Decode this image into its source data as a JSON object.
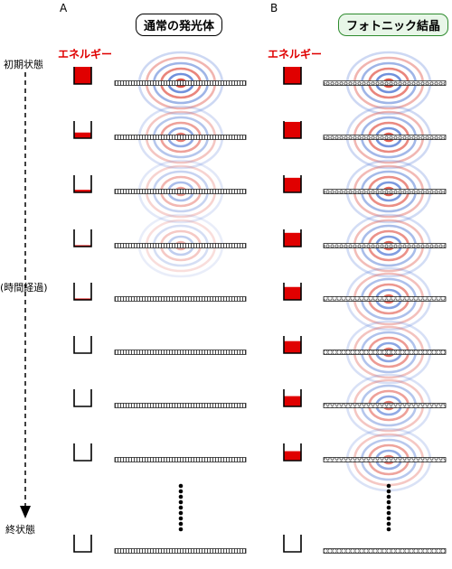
{
  "panel_a": {
    "letter": "A",
    "title": "通常の発光体"
  },
  "panel_b": {
    "letter": "B",
    "title": "フォトニック結晶"
  },
  "energy_label": "エネルギー",
  "time_axis": {
    "start": "初期状態",
    "middle": "(時間経過)",
    "end": "終状態"
  },
  "colors": {
    "energy_fill": "#e00000",
    "field_red": "#e0564a",
    "field_blue": "#5a7fd6",
    "title_b_border": "#2e8b2e"
  },
  "panel_a_energy_levels": [
    1.0,
    0.33,
    0.15,
    0.06,
    0.03,
    0.0,
    0.0,
    0.0,
    0.0
  ],
  "panel_b_energy_levels": [
    1.0,
    0.95,
    0.85,
    0.8,
    0.75,
    0.7,
    0.6,
    0.55,
    0.0
  ],
  "panel_a_field_intensity": [
    1.0,
    0.7,
    0.45,
    0.25,
    0.0,
    0.0,
    0.0,
    0.0,
    0.0
  ],
  "panel_b_field_intensity": [
    1.0,
    0.95,
    0.9,
    0.85,
    0.8,
    0.75,
    0.7,
    0.65,
    0.0
  ]
}
